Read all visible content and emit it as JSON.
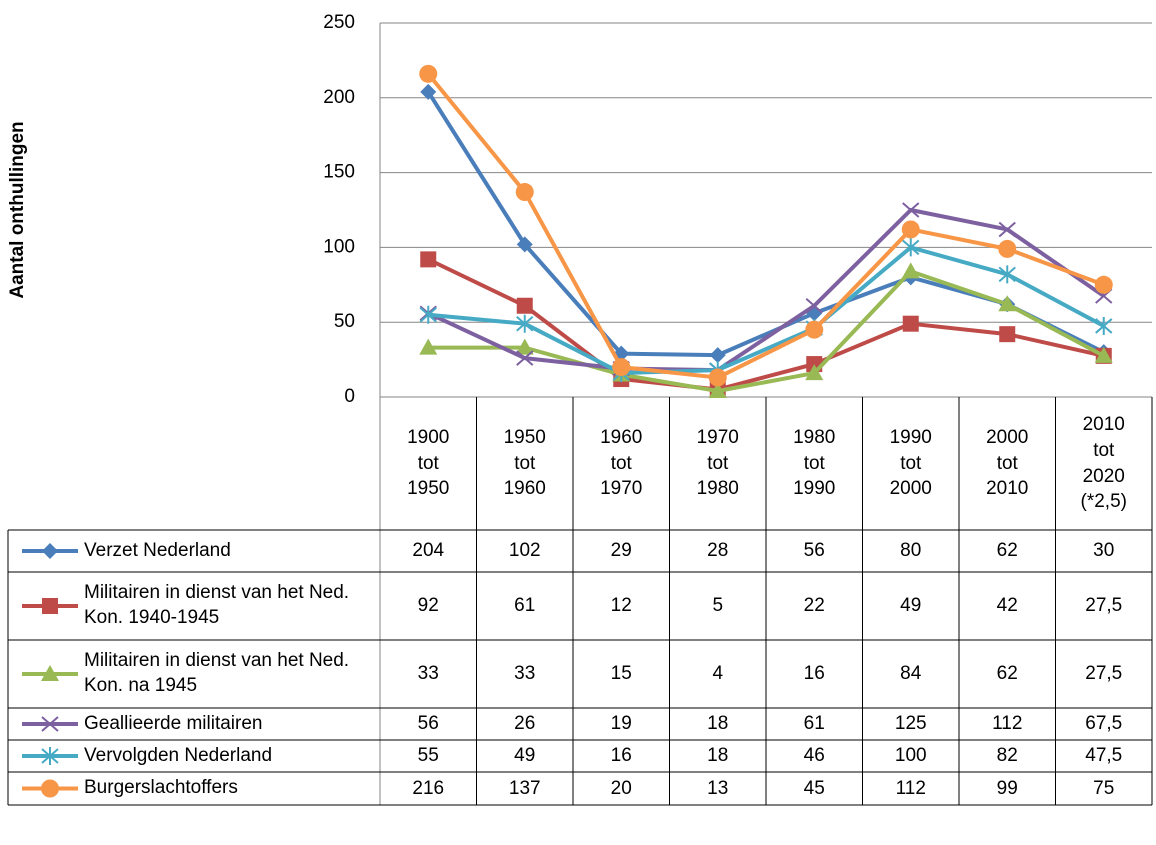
{
  "chart_data": {
    "type": "line",
    "y_label": "Aantal onthullingen",
    "categories": [
      "1900 tot 1950",
      "1950 tot 1960",
      "1960 tot 1970",
      "1970 tot 1980",
      "1980 tot 1990",
      "1990 tot 2000",
      "2000 tot 2010",
      "2010 tot 2020 (*2,5)"
    ],
    "ylim": [
      0,
      250
    ],
    "yticks": [
      0,
      50,
      100,
      150,
      200,
      250
    ],
    "grid": true,
    "series": [
      {
        "name": "Verzet Nederland",
        "color": "#4a7ebb",
        "marker": "diamond",
        "values": [
          204,
          102,
          29,
          28,
          56,
          80,
          62,
          30
        ],
        "value_labels": [
          "204",
          "102",
          "29",
          "28",
          "56",
          "80",
          "62",
          "30"
        ]
      },
      {
        "name": "Militairen in dienst van het Ned. Kon. 1940-1945",
        "color": "#be4b48",
        "marker": "square",
        "values": [
          92,
          61,
          12,
          5,
          22,
          49,
          42,
          27.5
        ],
        "value_labels": [
          "92",
          "61",
          "12",
          "5",
          "22",
          "49",
          "42",
          "27,5"
        ]
      },
      {
        "name": "Militairen in dienst van het Ned. Kon. na 1945",
        "color": "#98b954",
        "marker": "triangle",
        "values": [
          33,
          33,
          15,
          4,
          16,
          84,
          62,
          27.5
        ],
        "value_labels": [
          "33",
          "33",
          "15",
          "4",
          "16",
          "84",
          "62",
          "27,5"
        ]
      },
      {
        "name": "Geallieerde militairen",
        "color": "#7d60a0",
        "marker": "x",
        "values": [
          56,
          26,
          19,
          18,
          61,
          125,
          112,
          67.5
        ],
        "value_labels": [
          "56",
          "26",
          "19",
          "18",
          "61",
          "125",
          "112",
          "67,5"
        ]
      },
      {
        "name": "Vervolgden Nederland",
        "color": "#46aac5",
        "marker": "star",
        "values": [
          55,
          49,
          16,
          18,
          46,
          100,
          82,
          47.5
        ],
        "value_labels": [
          "55",
          "49",
          "16",
          "18",
          "46",
          "100",
          "82",
          "47,5"
        ]
      },
      {
        "name": "Burgerslachtoffers",
        "color": "#f79646",
        "marker": "circle",
        "values": [
          216,
          137,
          20,
          13,
          45,
          112,
          99,
          75
        ],
        "value_labels": [
          "216",
          "137",
          "20",
          "13",
          "45",
          "112",
          "99",
          "75"
        ]
      }
    ]
  }
}
